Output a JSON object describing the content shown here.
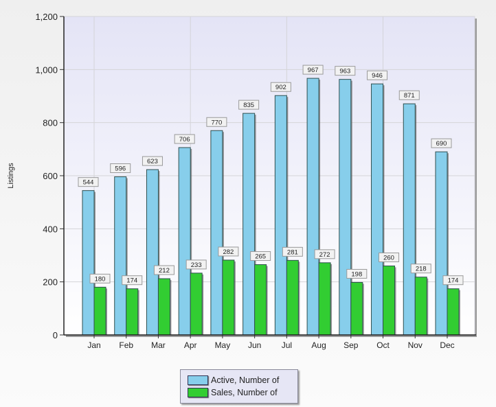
{
  "chart_data": {
    "type": "bar",
    "title": "",
    "xlabel": "",
    "ylabel": "Listings",
    "ylim": [
      0,
      1200
    ],
    "yticks": [
      0,
      200,
      400,
      600,
      800,
      1000,
      1200
    ],
    "ytick_labels": [
      "0",
      "200",
      "400",
      "600",
      "800",
      "1,000",
      "1,200"
    ],
    "grid": true,
    "legend_position": "bottom",
    "categories": [
      "Jan",
      "Feb",
      "Mar",
      "Apr",
      "May",
      "Jun",
      "Jul",
      "Aug",
      "Sep",
      "Oct",
      "Nov",
      "Dec"
    ],
    "series": [
      {
        "name": "Active, Number of",
        "color": "#87ceeb",
        "values": [
          544,
          596,
          623,
          706,
          770,
          835,
          902,
          967,
          963,
          946,
          871,
          690
        ]
      },
      {
        "name": "Sales, Number of",
        "color": "#32cd32",
        "values": [
          180,
          174,
          212,
          233,
          282,
          265,
          281,
          272,
          198,
          260,
          218,
          174
        ]
      }
    ]
  },
  "legend": {
    "items": [
      {
        "label": "Active, Number of",
        "color": "#87ceeb"
      },
      {
        "label": "Sales, Number of",
        "color": "#32cd32"
      }
    ]
  }
}
